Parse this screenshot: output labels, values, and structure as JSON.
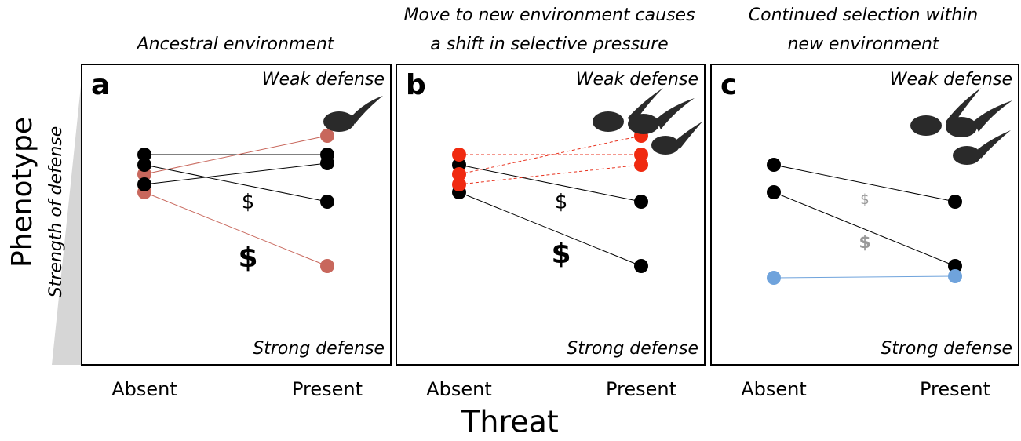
{
  "y_axis": {
    "title": "Phenotype",
    "subtitle": "Strength of defense"
  },
  "x_axis": {
    "title": "Threat"
  },
  "panels": [
    {
      "title": [
        "Ancestral environment"
      ],
      "letter": "a",
      "top_label": "Weak defense",
      "bottom_label": "Strong defense",
      "x_labels": [
        "Absent",
        "Present"
      ],
      "costs": [
        "$",
        "$"
      ]
    },
    {
      "title": [
        "Move to new environment causes",
        "a shift in selective pressure"
      ],
      "letter": "b",
      "top_label": "Weak defense",
      "bottom_label": "Strong defense",
      "x_labels": [
        "Absent",
        "Present"
      ],
      "costs": [
        "$",
        "$"
      ]
    },
    {
      "title": [
        "Continued selection within",
        "new environment"
      ],
      "letter": "c",
      "top_label": "Weak defense",
      "bottom_label": "Strong defense",
      "x_labels": [
        "Absent",
        "Present"
      ],
      "costs": [
        "$",
        "$"
      ]
    }
  ]
}
